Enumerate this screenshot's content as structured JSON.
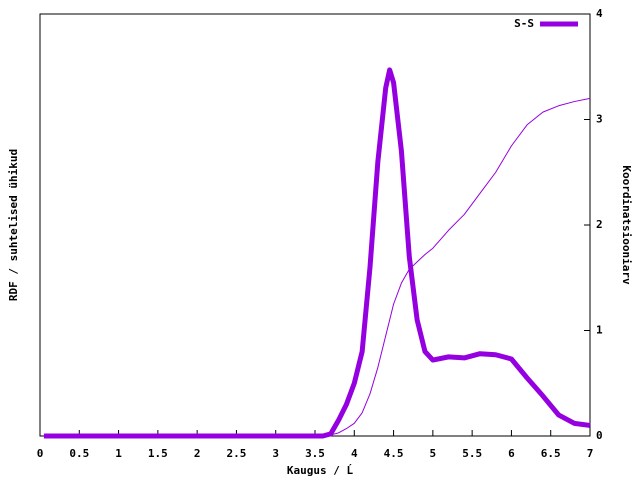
{
  "chart_data": {
    "type": "line",
    "xlabel": "Kaugus / Ĺ",
    "ylabel": "RDF / suhtelised ühikud",
    "y2label": "Koordinatsiooniarv",
    "x": [
      0.05,
      0.5,
      1,
      1.5,
      2,
      2.5,
      3,
      3.5,
      3.6,
      3.7,
      3.8,
      3.9,
      4.0,
      4.1,
      4.2,
      4.3,
      4.4,
      4.45,
      4.5,
      4.6,
      4.7,
      4.8,
      4.9,
      5.0,
      5.2,
      5.4,
      5.6,
      5.8,
      6.0,
      6.2,
      6.4,
      6.6,
      6.8,
      7.0
    ],
    "series": [
      {
        "name": "S-S",
        "color": "#9400e0",
        "width": 5,
        "values": [
          0,
          0,
          0,
          0,
          0,
          0,
          0,
          0,
          0,
          0.02,
          0.15,
          0.3,
          0.5,
          0.8,
          1.6,
          2.6,
          3.3,
          3.47,
          3.35,
          2.7,
          1.7,
          1.1,
          0.8,
          0.72,
          0.75,
          0.74,
          0.78,
          0.77,
          0.73,
          0.55,
          0.38,
          0.2,
          0.12,
          0.1
        ]
      },
      {
        "color": "#9400e0",
        "width": 1,
        "axis": "y2",
        "values": [
          0,
          0,
          0,
          0,
          0,
          0,
          0,
          0,
          0,
          0.01,
          0.03,
          0.07,
          0.12,
          0.22,
          0.4,
          0.65,
          0.95,
          1.1,
          1.25,
          1.45,
          1.58,
          1.65,
          1.72,
          1.78,
          1.95,
          2.1,
          2.3,
          2.5,
          2.75,
          2.95,
          3.07,
          3.13,
          3.17,
          3.2
        ]
      }
    ],
    "xlim": [
      0,
      7
    ],
    "xticks": [
      0,
      0.5,
      1,
      1.5,
      2,
      2.5,
      3,
      3.5,
      4,
      4.5,
      5,
      5.5,
      6,
      6.5,
      7
    ],
    "ylim": [
      0,
      4
    ],
    "y2lim": [
      0,
      4
    ],
    "y2ticks": [
      0,
      1,
      2,
      3,
      4
    ],
    "legend": "top-right"
  }
}
